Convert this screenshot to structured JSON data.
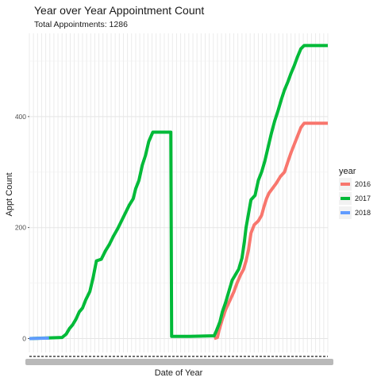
{
  "chart_data": {
    "type": "line",
    "title": "Year over Year Appointment Count",
    "subtitle": "Total Appointments: 1286",
    "xlabel": "Date of Year",
    "ylabel": "Appt Count",
    "x_range": [
      0,
      365
    ],
    "ylim": [
      -25,
      550
    ],
    "y_ticks": [
      0,
      200,
      400
    ],
    "grid": true,
    "legend": {
      "title": "year",
      "placement": "right"
    },
    "series": [
      {
        "name": "2016",
        "color": "#F8766D",
        "points": [
          [
            226,
            0
          ],
          [
            230,
            2
          ],
          [
            232,
            15
          ],
          [
            236,
            35
          ],
          [
            240,
            52
          ],
          [
            245,
            68
          ],
          [
            250,
            84
          ],
          [
            254,
            100
          ],
          [
            258,
            114
          ],
          [
            262,
            125
          ],
          [
            265,
            140
          ],
          [
            268,
            160
          ],
          [
            271,
            190
          ],
          [
            275,
            205
          ],
          [
            280,
            212
          ],
          [
            284,
            222
          ],
          [
            287,
            238
          ],
          [
            290,
            252
          ],
          [
            293,
            262
          ],
          [
            297,
            270
          ],
          [
            302,
            280
          ],
          [
            307,
            292
          ],
          [
            312,
            300
          ],
          [
            316,
            318
          ],
          [
            320,
            335
          ],
          [
            324,
            350
          ],
          [
            328,
            365
          ],
          [
            332,
            380
          ],
          [
            336,
            388
          ],
          [
            365,
            388
          ]
        ]
      },
      {
        "name": "2017",
        "color": "#00BA38",
        "points": [
          [
            0,
            0
          ],
          [
            40,
            2
          ],
          [
            45,
            8
          ],
          [
            49,
            18
          ],
          [
            53,
            25
          ],
          [
            57,
            35
          ],
          [
            61,
            48
          ],
          [
            65,
            55
          ],
          [
            69,
            70
          ],
          [
            74,
            85
          ],
          [
            78,
            110
          ],
          [
            82,
            140
          ],
          [
            88,
            143
          ],
          [
            93,
            158
          ],
          [
            98,
            170
          ],
          [
            103,
            185
          ],
          [
            108,
            198
          ],
          [
            112,
            210
          ],
          [
            117,
            225
          ],
          [
            122,
            240
          ],
          [
            127,
            252
          ],
          [
            130,
            270
          ],
          [
            134,
            285
          ],
          [
            138,
            312
          ],
          [
            142,
            330
          ],
          [
            146,
            355
          ],
          [
            151,
            372
          ],
          [
            173,
            372
          ],
          [
            174,
            4
          ],
          [
            196,
            4
          ],
          [
            226,
            5
          ],
          [
            229,
            15
          ],
          [
            233,
            30
          ],
          [
            236,
            48
          ],
          [
            240,
            65
          ],
          [
            244,
            85
          ],
          [
            248,
            105
          ],
          [
            252,
            115
          ],
          [
            256,
            125
          ],
          [
            260,
            145
          ],
          [
            263,
            175
          ],
          [
            265,
            200
          ],
          [
            268,
            225
          ],
          [
            271,
            250
          ],
          [
            276,
            258
          ],
          [
            280,
            285
          ],
          [
            284,
            300
          ],
          [
            288,
            320
          ],
          [
            292,
            345
          ],
          [
            296,
            370
          ],
          [
            300,
            392
          ],
          [
            304,
            410
          ],
          [
            308,
            430
          ],
          [
            312,
            448
          ],
          [
            316,
            462
          ],
          [
            320,
            478
          ],
          [
            324,
            492
          ],
          [
            328,
            508
          ],
          [
            332,
            522
          ],
          [
            336,
            528
          ],
          [
            365,
            528
          ]
        ]
      },
      {
        "name": "2018",
        "color": "#619CFF",
        "points": [
          [
            0,
            0
          ],
          [
            24,
            1
          ]
        ]
      }
    ]
  }
}
